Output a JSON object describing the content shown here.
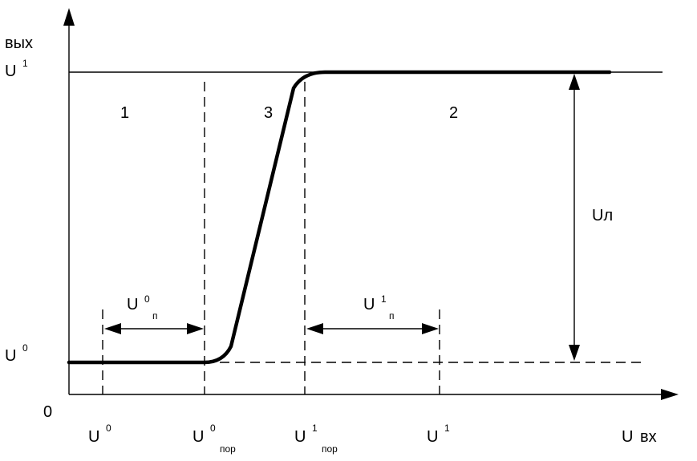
{
  "axes": {
    "y_label": "вых",
    "x_label": "вх",
    "origin": "0",
    "y_level_high": {
      "base": "U",
      "sup": "1"
    },
    "y_level_low": {
      "base": "U",
      "sup": "0"
    }
  },
  "x_ticks": [
    {
      "base": "U",
      "sup": "0",
      "sub": ""
    },
    {
      "base": "U",
      "sup": "0",
      "sub": "пор"
    },
    {
      "base": "U",
      "sup": "1",
      "sub": "пор"
    },
    {
      "base": "U",
      "sup": "1",
      "sub": ""
    },
    {
      "base": "U",
      "sup": "",
      "sub": ""
    }
  ],
  "regions": [
    "1",
    "3",
    "2"
  ],
  "annotations": {
    "noise_margin_low": {
      "base": "U",
      "sup": "0",
      "sub": "п"
    },
    "noise_margin_high": {
      "base": "U",
      "sup": "1",
      "sub": "п"
    },
    "logic_swing": "Uл"
  }
}
